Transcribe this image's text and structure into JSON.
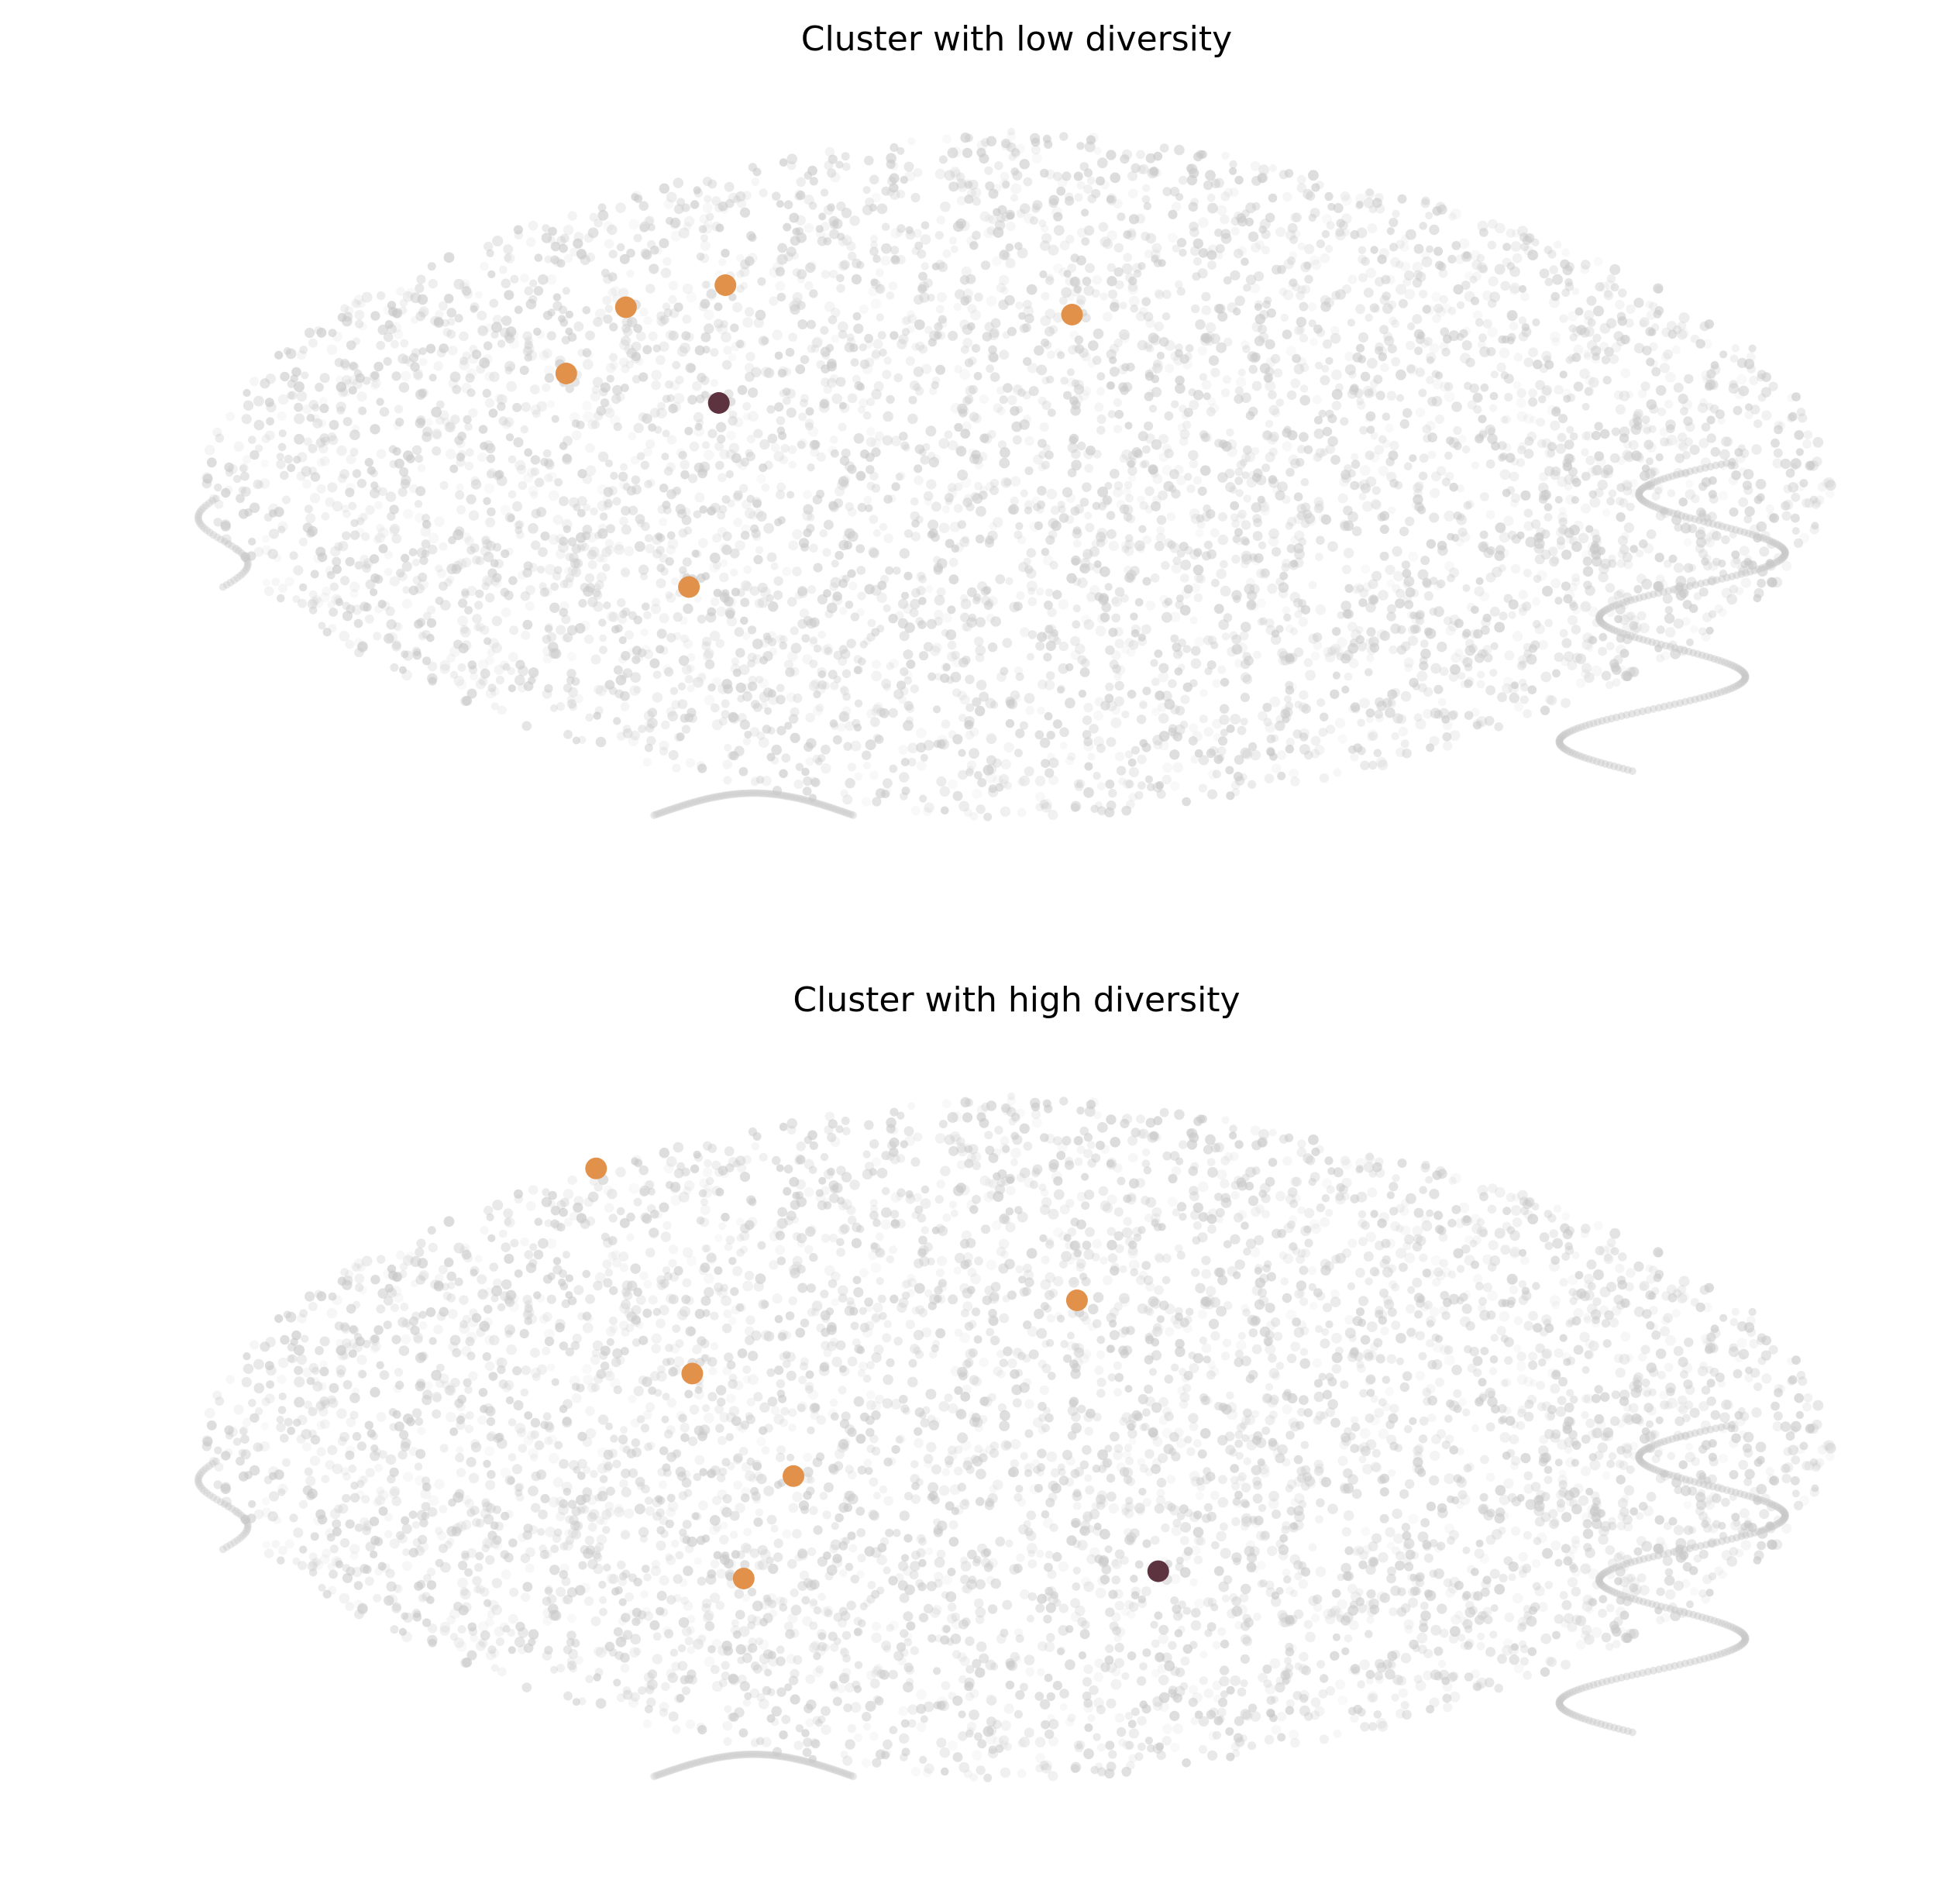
{
  "chart_data": [
    {
      "type": "scatter",
      "title": "Cluster with low diversity",
      "xlabel": "",
      "ylabel": "",
      "axes_visible": false,
      "grid": false,
      "colors": {
        "background_points": "#c8c8c8",
        "highlight_points": "#e2914a",
        "center_point": "#5e3340"
      },
      "highlight_points": [
        {
          "x": 0.263,
          "y": 0.73
        },
        {
          "x": 0.323,
          "y": 0.76
        },
        {
          "x": 0.532,
          "y": 0.72
        },
        {
          "x": 0.227,
          "y": 0.64
        },
        {
          "x": 0.301,
          "y": 0.35
        }
      ],
      "center_point": {
        "x": 0.319,
        "y": 0.6
      }
    },
    {
      "type": "scatter",
      "title": "Cluster with high diversity",
      "xlabel": "",
      "ylabel": "",
      "axes_visible": false,
      "grid": false,
      "colors": {
        "background_points": "#c8c8c8",
        "highlight_points": "#e2914a",
        "center_point": "#5e3340"
      },
      "highlight_points": [
        {
          "x": 0.245,
          "y": 0.87
        },
        {
          "x": 0.535,
          "y": 0.69
        },
        {
          "x": 0.303,
          "y": 0.59
        },
        {
          "x": 0.364,
          "y": 0.45
        },
        {
          "x": 0.334,
          "y": 0.31
        }
      ],
      "center_point": {
        "x": 0.584,
        "y": 0.32
      }
    }
  ]
}
